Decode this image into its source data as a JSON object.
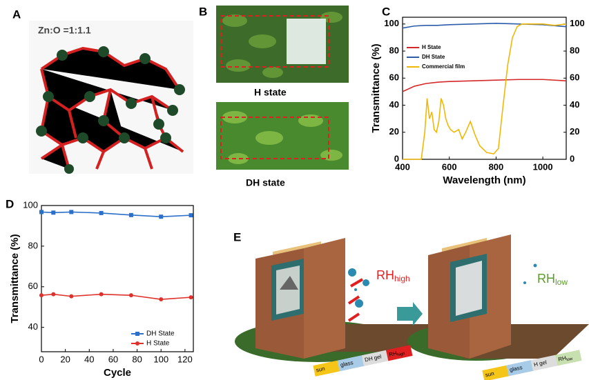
{
  "panel_labels": [
    "A",
    "B",
    "C",
    "D",
    "E"
  ],
  "panel_a": {
    "text": "Zn:O =1:1.1"
  },
  "panel_b": {
    "top_caption": "H state",
    "bottom_caption": "DH state"
  },
  "panel_e": {
    "rh_high": {
      "main": "RH",
      "sub": "high"
    },
    "rh_low": {
      "main": "RH",
      "sub": "low"
    },
    "strip_left": [
      "sun",
      "glass",
      "DH gel",
      {
        "main": "RH",
        "sub": "high"
      }
    ],
    "strip_right": [
      "sun",
      "glass",
      "H gel",
      {
        "main": "RH",
        "sub": "low"
      }
    ]
  },
  "chart_data": [
    {
      "type": "line",
      "xlabel": "Wavelength (nm)",
      "ylabel": "Transmittance (%)",
      "xlim": [
        400,
        1100
      ],
      "xticks": [
        400,
        600,
        800,
        1000
      ],
      "ylim": [
        0,
        105
      ],
      "yticks": [
        0,
        20,
        40,
        60,
        80,
        100
      ],
      "y2lim": [
        0,
        105
      ],
      "y2ticks": [
        0,
        20,
        40,
        60,
        80,
        100
      ],
      "legend": "upper left",
      "series": [
        {
          "name": "H State",
          "color": "#d62728",
          "x": [
            400,
            450,
            500,
            550,
            600,
            700,
            800,
            900,
            1000,
            1100
          ],
          "values": [
            50,
            54,
            56,
            57,
            57.5,
            58,
            58.5,
            59,
            59,
            58
          ]
        },
        {
          "name": "DH State",
          "color": "#2a5caa",
          "x": [
            400,
            450,
            500,
            550,
            600,
            700,
            800,
            900,
            1000,
            1100
          ],
          "values": [
            97,
            98.5,
            99,
            99,
            99.5,
            100,
            100.5,
            100,
            99.5,
            98
          ]
        },
        {
          "name": "Commercial film",
          "color": "#f2b705",
          "axis": "y2",
          "x": [
            400,
            480,
            495,
            505,
            515,
            525,
            535,
            545,
            555,
            565,
            575,
            585,
            595,
            605,
            620,
            640,
            655,
            670,
            690,
            710,
            730,
            760,
            790,
            810,
            830,
            850,
            870,
            890,
            910,
            930,
            960,
            1000,
            1050,
            1100
          ],
          "values": [
            0,
            0,
            20,
            45,
            30,
            35,
            22,
            20,
            28,
            45,
            40,
            30,
            25,
            22,
            20,
            22,
            15,
            20,
            28,
            18,
            10,
            5,
            4,
            8,
            40,
            70,
            90,
            98,
            100,
            100,
            100,
            100,
            99,
            100
          ]
        }
      ]
    },
    {
      "type": "line",
      "xlabel": "Cycle",
      "ylabel": "Transmittance (%)",
      "xlim": [
        0,
        127
      ],
      "xticks": [
        0,
        20,
        40,
        60,
        80,
        100,
        120
      ],
      "ylim": [
        28,
        100
      ],
      "yticks": [
        40,
        60,
        80,
        100
      ],
      "legend": "lower right",
      "x": [
        0,
        10,
        25,
        50,
        75,
        100,
        125
      ],
      "series": [
        {
          "name": "DH State",
          "color": "#2a6fc9",
          "marker": "square",
          "values": [
            96.8,
            96.5,
            96.8,
            96.3,
            95.3,
            94.5,
            95.2
          ]
        },
        {
          "name": "H State",
          "color": "#e0302a",
          "marker": "circle",
          "values": [
            55.8,
            56.3,
            55.3,
            56.3,
            55.8,
            53.8,
            54.8
          ]
        }
      ]
    }
  ]
}
